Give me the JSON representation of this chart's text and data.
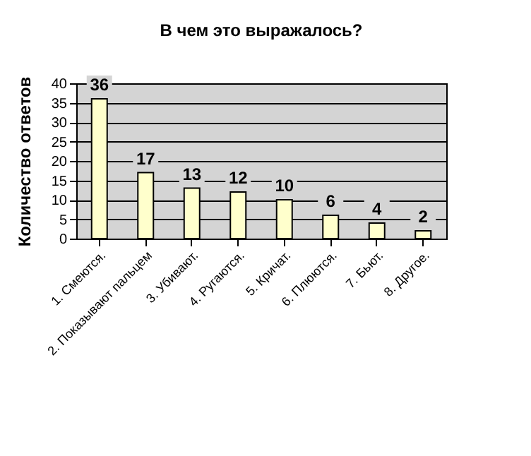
{
  "chart_data": {
    "type": "bar",
    "title": "В чем это выражалось?",
    "ylabel": "Количество ответов",
    "categories": [
      "1. Смеются.",
      "2. Показывают пальцем",
      "3. Убивают.",
      "4. Ругаются.",
      "5. Кричат.",
      "6. Плюются.",
      "7. Бьют.",
      "8. Другое."
    ],
    "values": [
      36,
      17,
      13,
      12,
      10,
      6,
      4,
      2
    ],
    "color": "#ffffcc",
    "ylim": [
      0,
      40
    ],
    "yticks": [
      0,
      5,
      10,
      15,
      20,
      25,
      30,
      35,
      40
    ],
    "grid": "y",
    "data_labels": true,
    "legend": false
  }
}
